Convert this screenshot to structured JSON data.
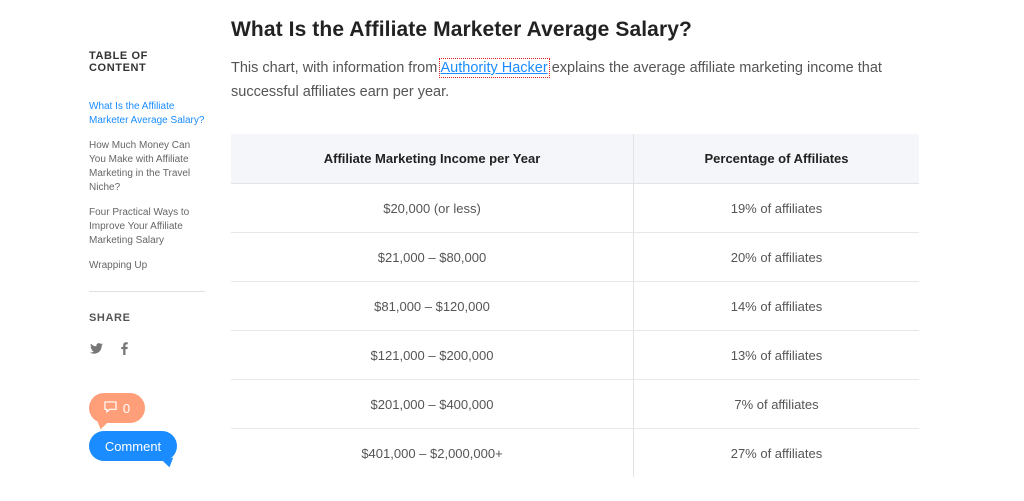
{
  "sidebar": {
    "toc_title": "TABLE OF CONTENT",
    "toc_items": [
      {
        "label": "What Is the Affiliate Marketer Average Salary?",
        "active": true
      },
      {
        "label": "How Much Money Can You Make with Affiliate Marketing in the Travel Niche?",
        "active": false
      },
      {
        "label": "Four Practical Ways to Improve Your Affiliate Marketing Salary",
        "active": false
      },
      {
        "label": "Wrapping Up",
        "active": false
      }
    ],
    "share_title": "SHARE",
    "share_icons": [
      "twitter-icon",
      "facebook-icon"
    ],
    "comment_count": "0",
    "comment_label": "Comment"
  },
  "article": {
    "heading": "What Is the Affiliate Marketer Average Salary?",
    "intro_before": "This chart, with information from ",
    "intro_link": "Authority Hacker",
    "intro_after": " explains the average affiliate marketing income that successful affiliates earn per year."
  },
  "table": {
    "headers": [
      "Affiliate Marketing Income per Year",
      "Percentage of Affiliates"
    ],
    "rows": [
      [
        "$20,000 (or less)",
        "19% of affiliates"
      ],
      [
        "$21,000 – $80,000",
        "20% of affiliates"
      ],
      [
        "$81,000 – $120,000",
        "14% of affiliates"
      ],
      [
        "$121,000 – $200,000",
        "13% of affiliates"
      ],
      [
        "$201,000 – $400,000",
        "7% of affiliates"
      ],
      [
        "$401,000 – $2,000,000+",
        "27% of affiliates"
      ]
    ]
  },
  "colors": {
    "accent": "#1a8cff",
    "comment_count_bg": "#ff9f7a",
    "header_bg": "#f5f6fa"
  }
}
